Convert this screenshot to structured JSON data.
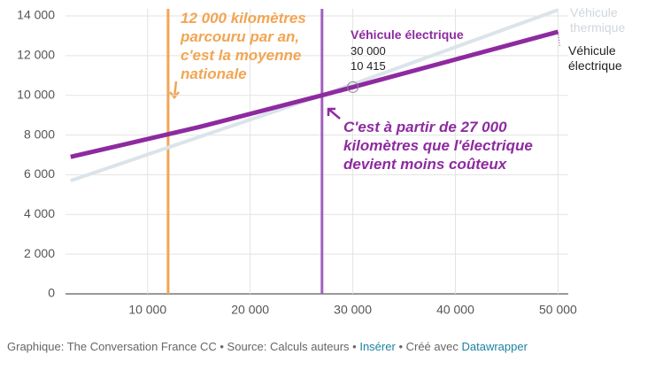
{
  "chart_data": {
    "type": "line",
    "x": [
      2500,
      15000,
      27000,
      30000,
      50000
    ],
    "series": [
      {
        "name": "Véhicule électrique",
        "color": "#8e2aa0",
        "values": [
          6900,
          8400,
          10000,
          10415,
          13200
        ]
      },
      {
        "name": "Véhicule thermique",
        "color": "#dbe4ea",
        "values": [
          5700,
          7900,
          10000,
          10560,
          14300
        ]
      }
    ],
    "xlim": [
      2000,
      51000
    ],
    "ylim": [
      0,
      14000
    ],
    "xticks": [
      {
        "value": 10000,
        "label": "10 000"
      },
      {
        "value": 20000,
        "label": "20 000"
      },
      {
        "value": 30000,
        "label": "30 000"
      },
      {
        "value": 40000,
        "label": "40 000"
      },
      {
        "value": 50000,
        "label": "50 000"
      }
    ],
    "yticks": [
      0,
      {
        "value": 2000,
        "label": "2 000"
      },
      {
        "value": 4000,
        "label": "4 000"
      },
      {
        "value": 6000,
        "label": "6 000"
      },
      {
        "value": 8000,
        "label": "8 000"
      },
      {
        "value": 10000,
        "label": "10 000"
      },
      {
        "value": 12000,
        "label": "12 000"
      },
      {
        "value": 14000,
        "label": "14 000"
      }
    ],
    "grid": true,
    "markers": [
      {
        "x": 12000,
        "color": "#f2a553",
        "text": "12 000 kilomètres parcouru par an, c'est la moyenne nationale"
      },
      {
        "x": 27000,
        "color": "#a25fc0",
        "text": "C'est à partir de 27 000 kilomètres que l'électrique devient moins coûteux",
        "text_color": "#8e2aa0"
      }
    ],
    "tooltip": {
      "title": "Véhicule électrique",
      "x_label": "30 000",
      "y_label": "10 415"
    },
    "footer": {
      "credit": "Graphique: The Conversation France CC • Source: Calculs auteurs •",
      "insert": "Insérer",
      "made_with": "• Créé avec",
      "tool": "Datawrapper"
    }
  }
}
